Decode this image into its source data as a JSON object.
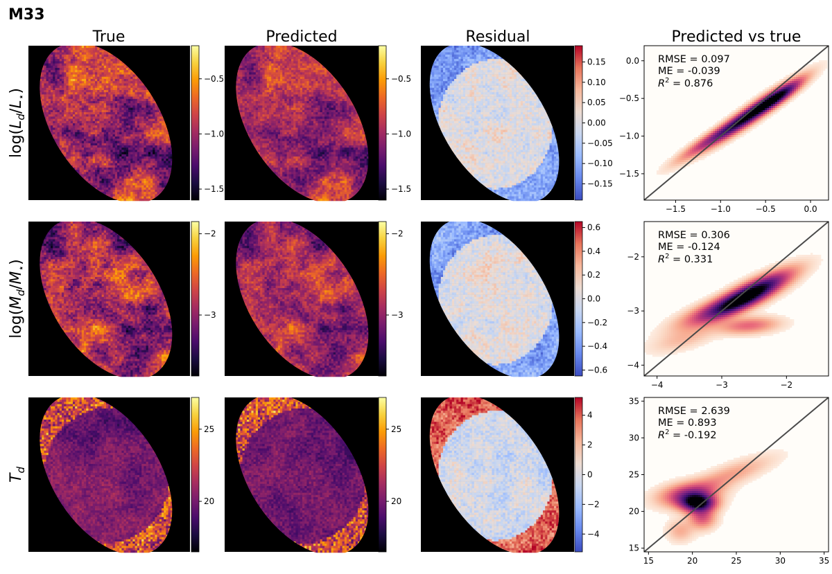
{
  "figure": {
    "title": "M33",
    "columns": [
      "True",
      "Predicted",
      "Residual",
      "Predicted vs true"
    ]
  },
  "colors": {
    "map_background": "#000000",
    "identity_line": "#4a4a4a",
    "inferno": [
      "#000004",
      "#1b0c41",
      "#4a0c6b",
      "#781c6d",
      "#a52c60",
      "#cf4446",
      "#ed6925",
      "#fb9b06",
      "#f7d13d",
      "#fcffa4"
    ],
    "coolwarm": [
      "#3b4cc0",
      "#6889ee",
      "#9abbff",
      "#c9d7f0",
      "#eddcd2",
      "#f7b89c",
      "#e7745b",
      "#b40426"
    ],
    "magma": [
      "#fffdf9",
      "#fbd9c5",
      "#f7a78c",
      "#e8677a",
      "#b73779",
      "#7a2282",
      "#3a0f70",
      "#000004"
    ]
  },
  "chart_data": [
    {
      "type": "heatmap",
      "row_label": "log(L_d/L_*)",
      "row_label_parts": {
        "pre": "log(",
        "a": "L",
        "a_sub": "d",
        "mid": "/",
        "b": "L",
        "b_sub": "⋆",
        "post": ")"
      },
      "true_map": {
        "title": "True",
        "colormap": "inferno",
        "clim": [
          -1.6,
          -0.2
        ],
        "colorbar_ticks": [
          -0.5,
          -1.0,
          -1.5
        ],
        "colorbar_tick_labels": [
          "−0.5",
          "−1.0",
          "−1.5"
        ]
      },
      "predicted_map": {
        "title": "Predicted",
        "colormap": "inferno",
        "clim": [
          -1.6,
          -0.2
        ],
        "colorbar_ticks": [
          -0.5,
          -1.0,
          -1.5
        ],
        "colorbar_tick_labels": [
          "−0.5",
          "−1.0",
          "−1.5"
        ]
      },
      "residual_map": {
        "title": "Residual",
        "colormap": "coolwarm",
        "clim": [
          -0.19,
          0.19
        ],
        "colorbar_ticks": [
          0.15,
          0.1,
          0.05,
          0.0,
          -0.05,
          -0.1,
          -0.15
        ],
        "colorbar_tick_labels": [
          "0.15",
          "0.10",
          "0.05",
          "0.00",
          "−0.05",
          "−0.10",
          "−0.15"
        ]
      },
      "scatter": {
        "title": "Predicted vs true",
        "type": "density",
        "xlim": [
          -1.85,
          0.2
        ],
        "ylim": [
          -1.85,
          0.2
        ],
        "xticks": [
          -1.5,
          -1.0,
          -0.5,
          0.0
        ],
        "xtick_labels": [
          "−1.5",
          "−1.0",
          "−0.5",
          "0.0"
        ],
        "yticks": [
          0.0,
          -0.5,
          -1.0,
          -1.5
        ],
        "ytick_labels": [
          "0.0",
          "−0.5",
          "−1.0",
          "−1.5"
        ],
        "identity_line": true,
        "stats": {
          "rmse": "RMSE = 0.097",
          "me": "ME = -0.039",
          "r2_prefix": "R",
          "r2_sup": "2",
          "r2_value": " = 0.876"
        },
        "density_blobs": [
          {
            "x": -0.65,
            "y": -0.68,
            "sx": 0.38,
            "sy": 0.06,
            "angle": 40,
            "w": 1.0
          },
          {
            "x": -1.15,
            "y": -1.05,
            "sx": 0.3,
            "sy": 0.05,
            "angle": 38,
            "w": 0.35
          },
          {
            "x": -0.35,
            "y": -0.45,
            "sx": 0.2,
            "sy": 0.05,
            "angle": 40,
            "w": 0.5
          }
        ]
      }
    },
    {
      "type": "heatmap",
      "row_label": "log(M_d/M_*)",
      "row_label_parts": {
        "pre": "log(",
        "a": "M",
        "a_sub": "d",
        "mid": "/",
        "b": "M",
        "b_sub": "⋆",
        "post": ")"
      },
      "true_map": {
        "title": "True",
        "colormap": "inferno",
        "clim": [
          -3.75,
          -1.85
        ],
        "colorbar_ticks": [
          -2,
          -3
        ],
        "colorbar_tick_labels": [
          "−2",
          "−3"
        ]
      },
      "predicted_map": {
        "title": "Predicted",
        "colormap": "inferno",
        "clim": [
          -3.75,
          -1.85
        ],
        "colorbar_ticks": [
          -2,
          -3
        ],
        "colorbar_tick_labels": [
          "−2",
          "−3"
        ]
      },
      "residual_map": {
        "title": "Residual",
        "colormap": "coolwarm",
        "clim": [
          -0.65,
          0.65
        ],
        "colorbar_ticks": [
          0.6,
          0.4,
          0.2,
          0.0,
          -0.2,
          -0.4,
          -0.6
        ],
        "colorbar_tick_labels": [
          "0.6",
          "0.4",
          "0.2",
          "0.0",
          "−0.2",
          "−0.4",
          "−0.6"
        ]
      },
      "scatter": {
        "title": "Predicted vs true",
        "type": "density",
        "xlim": [
          -4.2,
          -1.35
        ],
        "ylim": [
          -4.2,
          -1.35
        ],
        "xticks": [
          -4,
          -3,
          -2
        ],
        "xtick_labels": [
          "−4",
          "−3",
          "−2"
        ],
        "yticks": [
          -2,
          -3,
          -4
        ],
        "ytick_labels": [
          "−2",
          "−3",
          "−4"
        ],
        "identity_line": true,
        "stats": {
          "rmse": "RMSE = 0.306",
          "me": "ME = -0.124",
          "r2_prefix": "R",
          "r2_sup": "2",
          "r2_value": " = 0.331"
        },
        "density_blobs": [
          {
            "x": -2.55,
            "y": -2.65,
            "sx": 0.45,
            "sy": 0.12,
            "angle": 32,
            "w": 1.0
          },
          {
            "x": -3.05,
            "y": -2.95,
            "sx": 0.45,
            "sy": 0.12,
            "angle": 25,
            "w": 0.45
          },
          {
            "x": -2.6,
            "y": -3.25,
            "sx": 0.3,
            "sy": 0.1,
            "angle": 5,
            "w": 0.3
          },
          {
            "x": -3.6,
            "y": -3.5,
            "sx": 0.35,
            "sy": 0.12,
            "angle": 20,
            "w": 0.12
          }
        ]
      }
    },
    {
      "type": "heatmap",
      "row_label": "T_d",
      "row_label_parts": {
        "pre": "",
        "a": "T",
        "a_sub": "d",
        "mid": "",
        "b": "",
        "b_sub": "",
        "post": ""
      },
      "true_map": {
        "title": "True",
        "colormap": "inferno",
        "clim": [
          16.5,
          27.2
        ],
        "colorbar_ticks": [
          25,
          20
        ],
        "colorbar_tick_labels": [
          "25",
          "20"
        ]
      },
      "predicted_map": {
        "title": "Predicted",
        "colormap": "inferno",
        "clim": [
          16.5,
          27.2
        ],
        "colorbar_ticks": [
          25,
          20
        ],
        "colorbar_tick_labels": [
          "25",
          "20"
        ]
      },
      "residual_map": {
        "title": "Residual",
        "colormap": "coolwarm",
        "clim": [
          -5.2,
          5.2
        ],
        "colorbar_ticks": [
          4,
          2,
          0,
          -2,
          -4
        ],
        "colorbar_tick_labels": [
          "4",
          "2",
          "0",
          "−2",
          "−4"
        ]
      },
      "scatter": {
        "title": "Predicted vs true",
        "type": "density",
        "xlim": [
          14.5,
          35.5
        ],
        "ylim": [
          14.5,
          35.5
        ],
        "xticks": [
          15,
          20,
          25,
          30,
          35
        ],
        "xtick_labels": [
          "15",
          "20",
          "25",
          "30",
          "35"
        ],
        "yticks": [
          35,
          30,
          25,
          20,
          15
        ],
        "ytick_labels": [
          "35",
          "30",
          "25",
          "20",
          "15"
        ],
        "identity_line": true,
        "stats": {
          "rmse": "RMSE = 2.639",
          "me": "ME = 0.893",
          "r2_prefix": "R",
          "r2_sup": "2",
          "r2_value": " = -0.192"
        },
        "density_blobs": [
          {
            "x": 20.5,
            "y": 21.3,
            "sx": 1.3,
            "sy": 0.8,
            "angle": 0,
            "w": 1.0
          },
          {
            "x": 19.5,
            "y": 22.5,
            "sx": 2.2,
            "sy": 1.0,
            "angle": 10,
            "w": 0.45
          },
          {
            "x": 21,
            "y": 19.3,
            "sx": 1.0,
            "sy": 1.0,
            "angle": -40,
            "w": 0.35
          },
          {
            "x": 24,
            "y": 25,
            "sx": 3.5,
            "sy": 0.9,
            "angle": 25,
            "w": 0.18
          },
          {
            "x": 18.5,
            "y": 17.5,
            "sx": 1.0,
            "sy": 1.0,
            "angle": 0,
            "w": 0.15
          }
        ]
      }
    }
  ]
}
